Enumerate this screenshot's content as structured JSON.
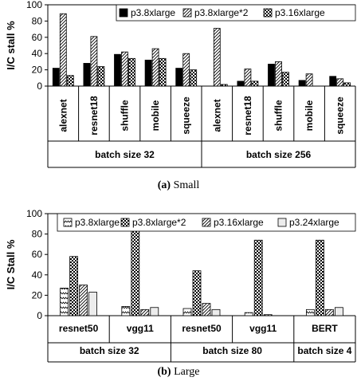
{
  "chart_data": [
    {
      "type": "bar",
      "panel": "small",
      "caption_prefix": "(a)",
      "caption_text": "Small",
      "ylabel": "I/C stall %",
      "ylim": [
        0,
        100
      ],
      "yticks": [
        0,
        20,
        40,
        60,
        80,
        100
      ],
      "series": [
        {
          "name": "p3.8xlarge",
          "pattern": "solid",
          "values": [
            22,
            28,
            39,
            32,
            22,
            0,
            6,
            27,
            7,
            12
          ]
        },
        {
          "name": "p3.8xlarge*2",
          "pattern": "hatch",
          "values": [
            89,
            61,
            42,
            46,
            40,
            71,
            21,
            30,
            15,
            9
          ]
        },
        {
          "name": "p3.16xlarge",
          "pattern": "check",
          "values": [
            13,
            24,
            34,
            34,
            20,
            2,
            6,
            17,
            0,
            4
          ]
        }
      ],
      "groups": [
        {
          "label": "batch size 32",
          "categories": [
            "alexnet",
            "resnet18",
            "shuffle",
            "mobile",
            "squeeze"
          ]
        },
        {
          "label": "batch size 256",
          "categories": [
            "alexnet",
            "resnet18",
            "shuffle",
            "mobile",
            "squeeze"
          ]
        }
      ]
    },
    {
      "type": "bar",
      "panel": "large",
      "caption_prefix": "(b)",
      "caption_text": "Large",
      "ylabel": "I/C Stall %",
      "ylim": [
        0,
        100
      ],
      "yticks": [
        0,
        20,
        40,
        60,
        80,
        100
      ],
      "series": [
        {
          "name": "p3.8xlarge",
          "pattern": "zigzag",
          "values": [
            27,
            9,
            7,
            3,
            6
          ]
        },
        {
          "name": "p3.8xlarge*2",
          "pattern": "check",
          "values": [
            58,
            86,
            44,
            74,
            74
          ]
        },
        {
          "name": "p3.16xlarge",
          "pattern": "hatch",
          "values": [
            30,
            6,
            12,
            1,
            6
          ]
        },
        {
          "name": "p3.24xlarge",
          "pattern": "light",
          "values": [
            23,
            8,
            6,
            0,
            8
          ]
        }
      ],
      "groups": [
        {
          "label": "batch size 32",
          "categories": [
            "resnet50",
            "vgg11"
          ]
        },
        {
          "label": "batch size 80",
          "categories": [
            "resnet50",
            "vgg11"
          ]
        },
        {
          "label": "batch size 4",
          "categories": [
            "BERT"
          ]
        }
      ]
    }
  ]
}
